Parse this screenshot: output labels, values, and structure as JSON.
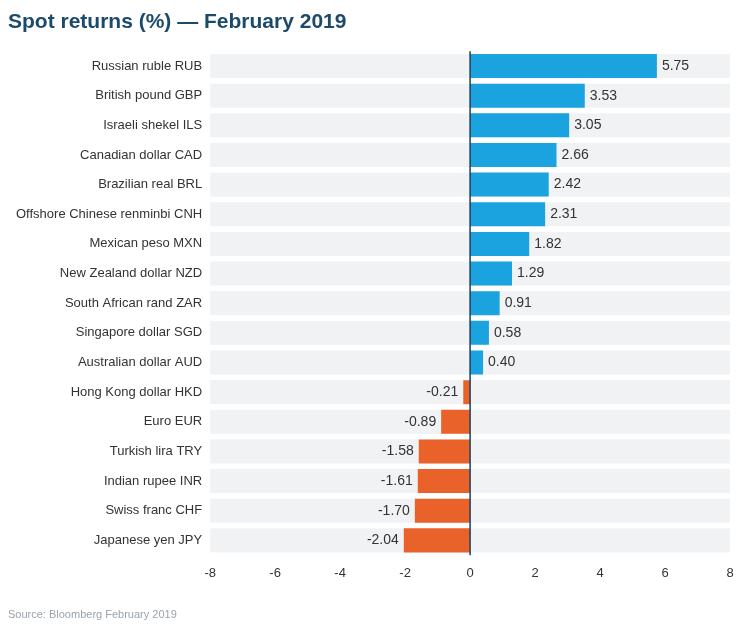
{
  "chart_data": {
    "type": "bar",
    "orientation": "horizontal",
    "title": "Spot returns (%) — February 2019",
    "source": "Source: Bloomberg February 2019",
    "categories": [
      "Russian ruble RUB",
      "British pound GBP",
      "Israeli shekel ILS",
      "Canadian dollar CAD",
      "Brazilian real BRL",
      "Offshore Chinese renminbi CNH",
      "Mexican peso MXN",
      "New Zealand dollar NZD",
      "South African rand ZAR",
      "Singapore dollar SGD",
      "Australian dollar AUD",
      "Hong Kong dollar HKD",
      "Euro EUR",
      "Turkish lira TRY",
      "Indian rupee INR",
      "Swiss franc CHF",
      "Japanese yen JPY"
    ],
    "values": [
      5.75,
      3.53,
      3.05,
      2.66,
      2.42,
      2.31,
      1.82,
      1.29,
      0.91,
      0.58,
      0.4,
      -0.21,
      -0.89,
      -1.58,
      -1.61,
      -1.7,
      -2.04
    ],
    "value_labels": [
      "5.75",
      "3.53",
      "3.05",
      "2.66",
      "2.42",
      "2.31",
      "1.82",
      "1.29",
      "0.91",
      "0.58",
      "0.40",
      "-0.21",
      "-0.89",
      "-1.58",
      "-1.61",
      "-1.70",
      "-2.04"
    ],
    "colors": [
      "#1aa3df",
      "#1aa3df",
      "#1aa3df",
      "#1aa3df",
      "#1aa3df",
      "#1aa3df",
      "#1aa3df",
      "#1aa3df",
      "#1aa3df",
      "#1aa3df",
      "#1aa3df",
      "#e8622a",
      "#e8622a",
      "#e8622a",
      "#e8622a",
      "#e8622a",
      "#e8622a"
    ],
    "xlim": [
      -8,
      8
    ],
    "xticks": [
      -8,
      -6,
      -4,
      -2,
      0,
      2,
      4,
      6,
      8
    ],
    "grid": false,
    "data_labels": true
  }
}
